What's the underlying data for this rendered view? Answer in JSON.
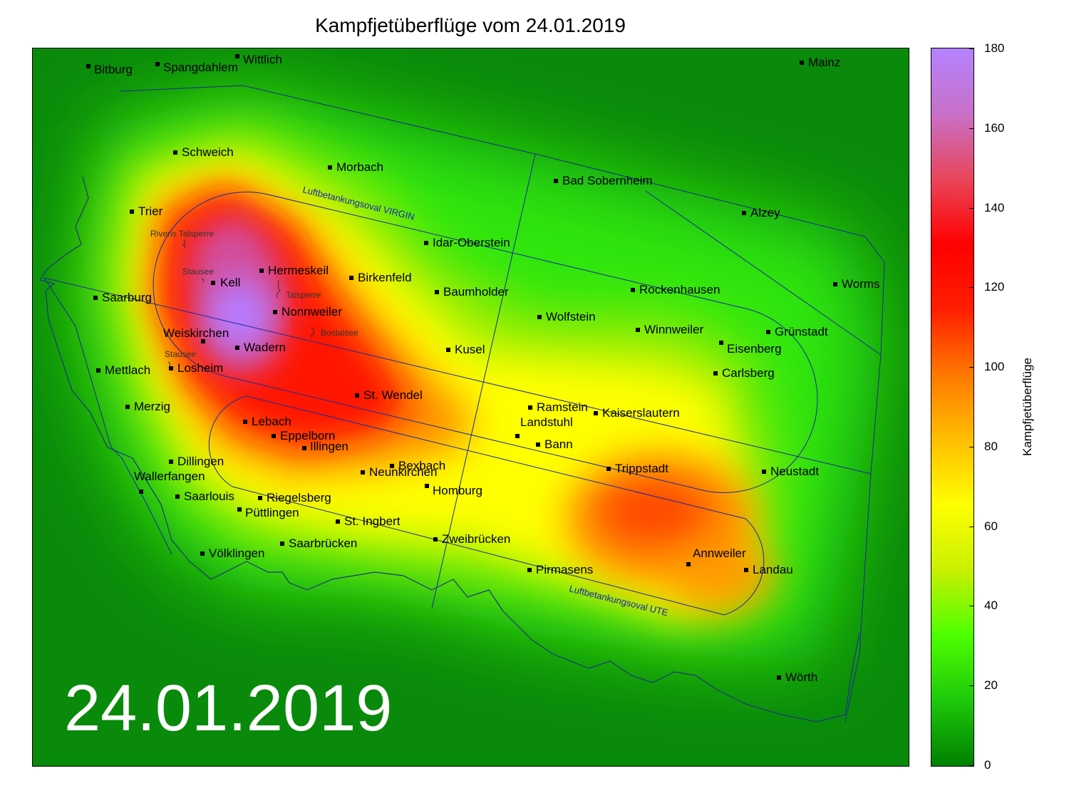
{
  "title": "Kampfjetüberflüge vom 24.01.2019",
  "date_stamp": "24.01.2019",
  "colorbar": {
    "label": "Kampfjetüberflüge",
    "min": 0,
    "max": 180,
    "ticks": [
      "0",
      "20",
      "40",
      "60",
      "80",
      "100",
      "120",
      "140",
      "160",
      "180"
    ],
    "colors": [
      "#008000",
      "#1ec80a",
      "#4cff00",
      "#c8f000",
      "#ffff00",
      "#ffbe00",
      "#ff7800",
      "#ff1e00",
      "#ff0000",
      "#e8465a",
      "#c870c8",
      "#b482ff"
    ]
  },
  "airspace_labels": {
    "virgin": "Luftbetankungsoval VIRGIN",
    "ute": "Luftbetankungsoval UTE"
  },
  "lakes": {
    "riveris": "Riveris Talsperre",
    "stausee_kell": "Stausee",
    "talsperre": "Talsperre",
    "bostalsee": "Bostalsee",
    "stausee_losheim": "Stausee"
  },
  "cities": [
    {
      "name": "Bitburg"
    },
    {
      "name": "Spangdahlem"
    },
    {
      "name": "Wittlich"
    },
    {
      "name": "Mainz"
    },
    {
      "name": "Schweich"
    },
    {
      "name": "Morbach"
    },
    {
      "name": "Bad Sobernheim"
    },
    {
      "name": "Trier"
    },
    {
      "name": "Alzey"
    },
    {
      "name": "Idar-Oberstein"
    },
    {
      "name": "Hermeskeil"
    },
    {
      "name": "Kell"
    },
    {
      "name": "Birkenfeld"
    },
    {
      "name": "Worms"
    },
    {
      "name": "Saarburg"
    },
    {
      "name": "Baumholder"
    },
    {
      "name": "Rockenhausen"
    },
    {
      "name": "Nonnweiler"
    },
    {
      "name": "Wolfstein"
    },
    {
      "name": "Winnweiler"
    },
    {
      "name": "Grünstadt"
    },
    {
      "name": "Weiskirchen"
    },
    {
      "name": "Wadern"
    },
    {
      "name": "Kusel"
    },
    {
      "name": "Eisenberg"
    },
    {
      "name": "Mettlach"
    },
    {
      "name": "Losheim"
    },
    {
      "name": "Carlsberg"
    },
    {
      "name": "St. Wendel"
    },
    {
      "name": "Merzig"
    },
    {
      "name": "Ramstein"
    },
    {
      "name": "Kaiserslautern"
    },
    {
      "name": "Lebach"
    },
    {
      "name": "Landstuhl"
    },
    {
      "name": "Eppelborn"
    },
    {
      "name": "Bann"
    },
    {
      "name": "Illingen"
    },
    {
      "name": "Dillingen"
    },
    {
      "name": "Bexbach"
    },
    {
      "name": "Trippstadt"
    },
    {
      "name": "Neustadt"
    },
    {
      "name": "Neunkirchen"
    },
    {
      "name": "Wallerfangen"
    },
    {
      "name": "Homburg"
    },
    {
      "name": "Riegelsberg"
    },
    {
      "name": "Saarlouis"
    },
    {
      "name": "Püttlingen"
    },
    {
      "name": "St. Ingbert"
    },
    {
      "name": "Zweibrücken"
    },
    {
      "name": "Völklingen"
    },
    {
      "name": "Saarbrücken"
    },
    {
      "name": "Annweiler"
    },
    {
      "name": "Pirmasens"
    },
    {
      "name": "Landau"
    },
    {
      "name": "Wörth"
    }
  ]
}
